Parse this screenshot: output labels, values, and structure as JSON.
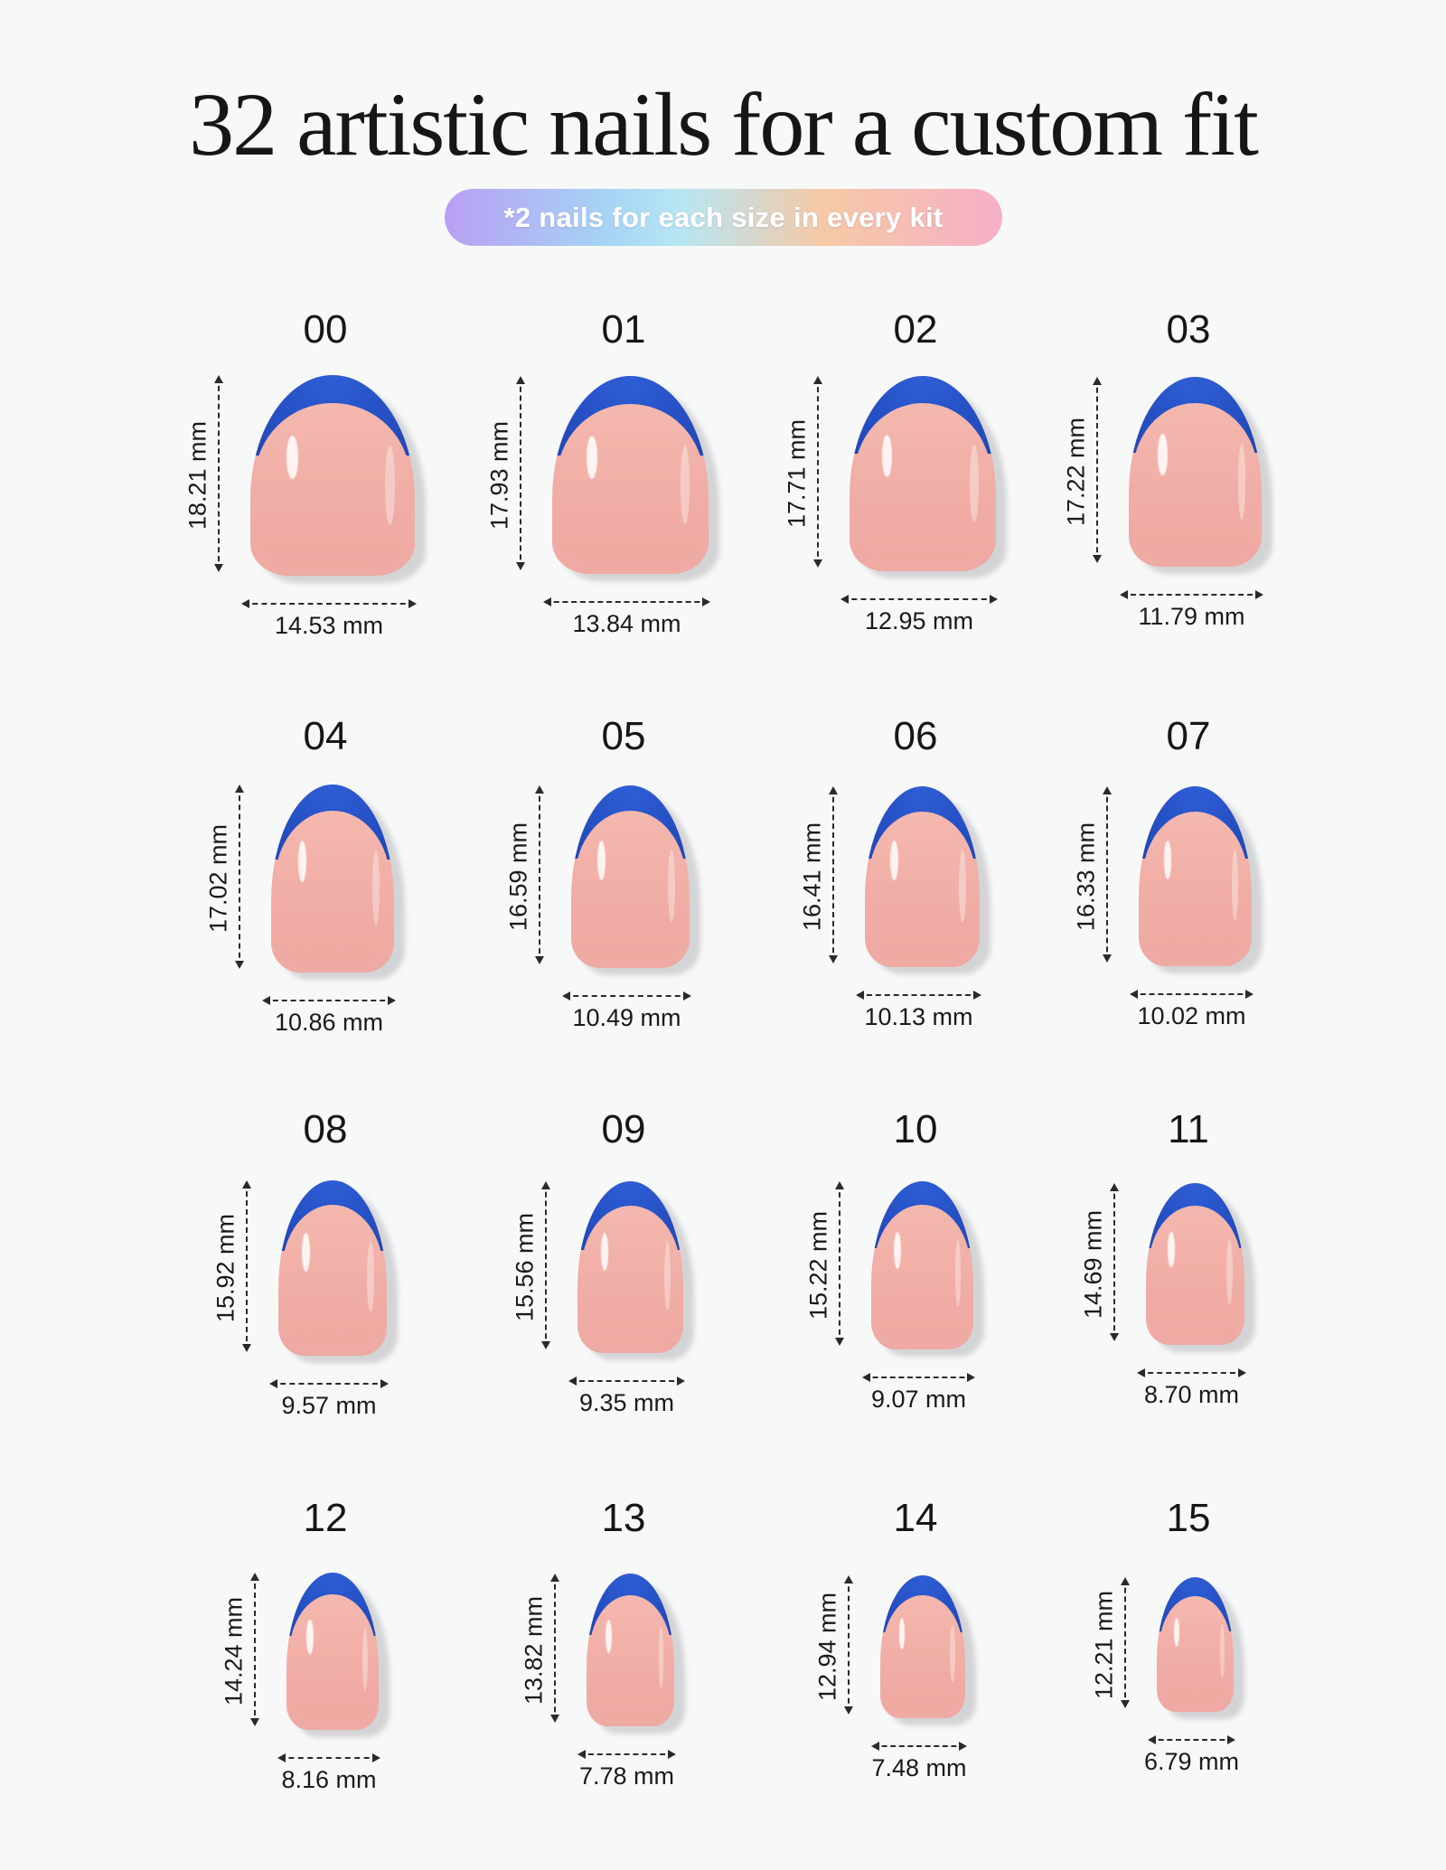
{
  "title": "32 artistic nails for a custom fit",
  "badge": "*2 nails for each size in every kit",
  "colors": {
    "tip": "#2550c4",
    "nail": "#f1aea6",
    "background": "#f7f8f8"
  },
  "sizes": [
    {
      "label": "00",
      "height": "18.21 mm",
      "width": "14.53 mm"
    },
    {
      "label": "01",
      "height": "17.93 mm",
      "width": "13.84 mm"
    },
    {
      "label": "02",
      "height": "17.71 mm",
      "width": "12.95 mm"
    },
    {
      "label": "03",
      "height": "17.22 mm",
      "width": "11.79 mm"
    },
    {
      "label": "04",
      "height": "17.02 mm",
      "width": "10.86 mm"
    },
    {
      "label": "05",
      "height": "16.59 mm",
      "width": "10.49 mm"
    },
    {
      "label": "06",
      "height": "16.41 mm",
      "width": "10.13 mm"
    },
    {
      "label": "07",
      "height": "16.33 mm",
      "width": "10.02 mm"
    },
    {
      "label": "08",
      "height": "15.92 mm",
      "width": "9.57 mm"
    },
    {
      "label": "09",
      "height": "15.56 mm",
      "width": "9.35 mm"
    },
    {
      "label": "10",
      "height": "15.22 mm",
      "width": "9.07 mm"
    },
    {
      "label": "11",
      "height": "14.69 mm",
      "width": "8.70 mm"
    },
    {
      "label": "12",
      "height": "14.24 mm",
      "width": "8.16 mm"
    },
    {
      "label": "13",
      "height": "13.82 mm",
      "width": "7.78 mm"
    },
    {
      "label": "14",
      "height": "12.94 mm",
      "width": "7.48 mm"
    },
    {
      "label": "15",
      "height": "12.21 mm",
      "width": "6.79 mm"
    }
  ]
}
